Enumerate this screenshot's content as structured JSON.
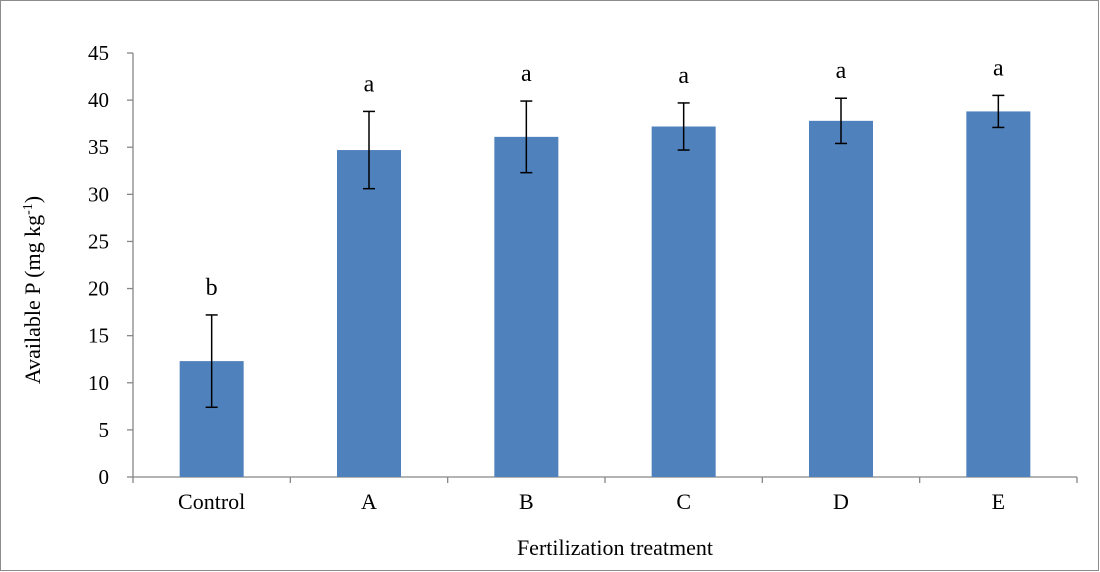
{
  "chart_data": {
    "type": "bar",
    "categories": [
      "Control",
      "A",
      "B",
      "C",
      "D",
      "E"
    ],
    "values": [
      12.3,
      34.7,
      36.1,
      37.2,
      37.8,
      38.8
    ],
    "errors": [
      4.9,
      4.1,
      3.8,
      2.5,
      2.4,
      1.7
    ],
    "significance_labels": [
      "b",
      "a",
      "a",
      "a",
      "a",
      "a"
    ],
    "xlabel": "Fertilization treatment",
    "ylabel": "Available P (mg kg",
    "ylabel_superscript": "-1",
    "ylabel_close": ")",
    "ylim": [
      0,
      45
    ],
    "yticks": [
      0,
      5,
      10,
      15,
      20,
      25,
      30,
      35,
      40,
      45
    ],
    "grid": false,
    "legend": "none",
    "bar_color": "#4f81bd",
    "error_bar_color": "#000000",
    "axis_color": "#868686"
  }
}
